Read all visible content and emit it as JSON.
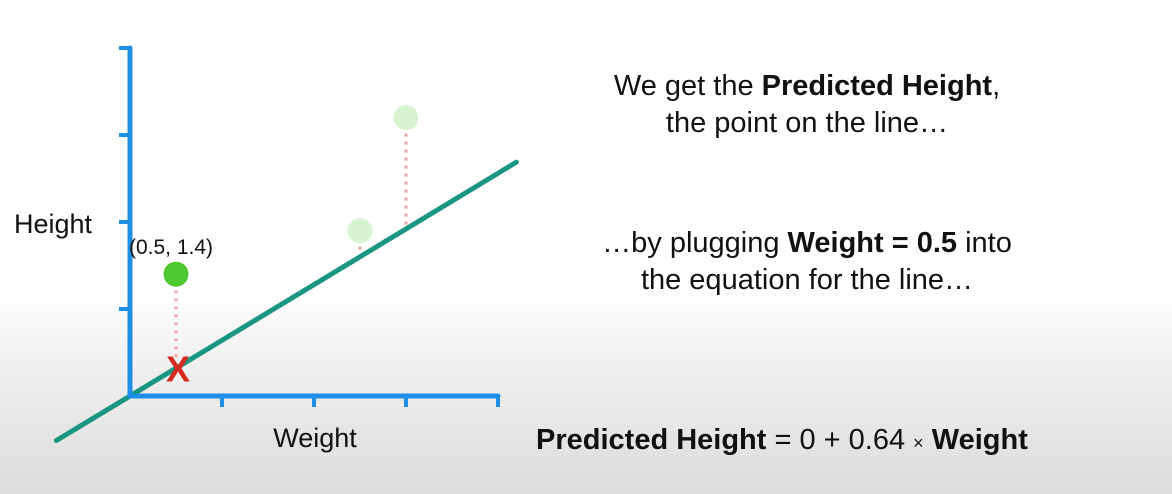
{
  "chart_data": {
    "type": "scatter",
    "xlabel": "Weight",
    "ylabel": "Height",
    "xlim": [
      0,
      4
    ],
    "ylim": [
      0,
      4
    ],
    "grid": false,
    "x_ticks": [
      1,
      2,
      3,
      4
    ],
    "y_ticks": [
      1,
      2,
      3,
      4
    ],
    "series": [
      {
        "points": [
          {
            "x": 0.5,
            "y": 1.4
          },
          {
            "x": 2.5,
            "y": 1.9
          },
          {
            "x": 3.0,
            "y": 3.2
          }
        ]
      }
    ],
    "highlight_point": {
      "x": 0.5,
      "y": 1.4,
      "label": "(0.5, 1.4)"
    },
    "predicted_point": {
      "x": 0.5,
      "y": 0.32,
      "marker": "X"
    },
    "line": {
      "intercept": 0,
      "slope": 0.64,
      "x_range": [
        -0.8,
        4.2
      ]
    },
    "colors": {
      "axis": "#1e8fe6",
      "line": "#1a9682",
      "highlight_point": "#4cc92f",
      "faded_point": "#d8f3d2",
      "residual": "#f0a5a5",
      "marker": "#d42a1f"
    }
  },
  "annotation": {
    "line1": {
      "pre": "We get the ",
      "bold": "Predicted Height",
      "post": ", the point on the line…"
    },
    "line2": {
      "pre": "…by plugging ",
      "bold": "Weight = 0.5",
      "post": " into the equation for the line…"
    },
    "equation": {
      "bold1": "Predicted Height",
      "middle": " = 0 + 0.64 ",
      "times": "×",
      "bold2": " Weight"
    }
  }
}
